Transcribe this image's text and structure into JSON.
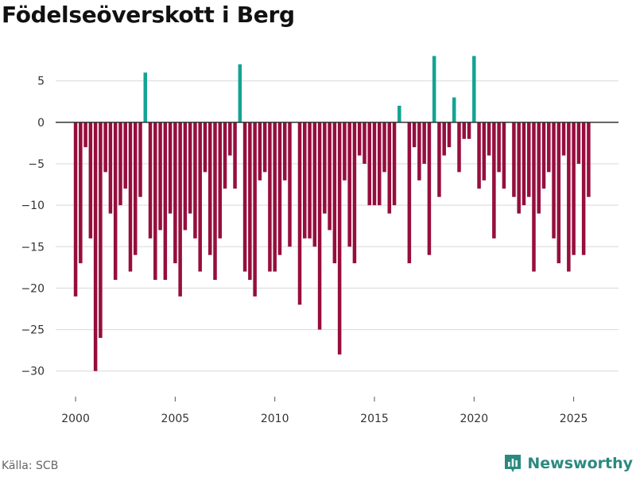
{
  "header": {
    "title": "Födelseöverskott i Berg"
  },
  "footer": {
    "source": "Källa: SCB",
    "brand": "Newsworthy"
  },
  "colors": {
    "positive": "#14a394",
    "negative": "#960e3d",
    "zero_line": "#333333",
    "grid": "#d9d9d9",
    "brand": "#2b8a80"
  },
  "chart_data": {
    "type": "bar",
    "title": "Födelseöverskott i Berg",
    "xlabel": "",
    "ylabel": "",
    "x_start": 2000.0,
    "x_step": 0.25,
    "xlim": [
      1999.0,
      2027.25
    ],
    "ylim": [
      -33,
      9
    ],
    "y_ticks": [
      5,
      0,
      -5,
      -10,
      -15,
      -20,
      -25,
      -30
    ],
    "x_ticks": [
      2000,
      2005,
      2010,
      2015,
      2020,
      2025
    ],
    "values": [
      -21,
      -17,
      -3,
      -14,
      -30,
      -26,
      -6,
      -11,
      -19,
      -10,
      -8,
      -18,
      -16,
      -9,
      6,
      -14,
      -19,
      -13,
      -19,
      -11,
      -17,
      -21,
      -13,
      -11,
      -14,
      -18,
      -6,
      -16,
      -19,
      -14,
      -8,
      -4,
      -8,
      7,
      -18,
      -19,
      -21,
      -7,
      -6,
      -18,
      -18,
      -16,
      -7,
      -15,
      0,
      -22,
      -14,
      -14,
      -15,
      -25,
      -11,
      -13,
      -17,
      -28,
      -7,
      -15,
      -17,
      -4,
      -5,
      -10,
      -10,
      -10,
      -6,
      -11,
      -10,
      2,
      0,
      -17,
      -3,
      -7,
      -5,
      -16,
      8,
      -9,
      -4,
      -3,
      3,
      -6,
      -2,
      -2,
      8,
      -8,
      -7,
      -4,
      -14,
      -6,
      -8,
      0,
      -9,
      -11,
      -10,
      -9,
      -18,
      -11,
      -8,
      -6,
      -14,
      -17,
      -4,
      -18,
      -16,
      -5,
      -16,
      -9
    ]
  }
}
